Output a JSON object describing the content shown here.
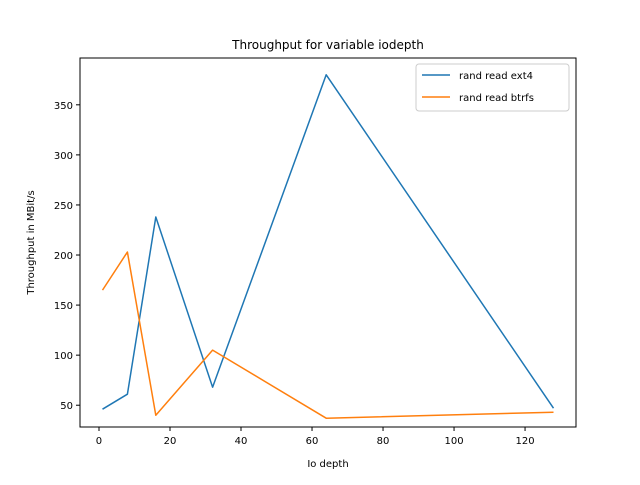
{
  "chart_data": {
    "type": "line",
    "title": "Throughput for variable iodepth",
    "xlabel": "Io depth",
    "ylabel": "Throughput in MBit/s",
    "xlim": [
      -5.35,
      134.35
    ],
    "ylim": [
      28.25,
      396.75
    ],
    "xticks": [
      0,
      20,
      40,
      60,
      80,
      100,
      120
    ],
    "yticks": [
      50,
      100,
      150,
      200,
      250,
      300,
      350
    ],
    "x": [
      1,
      8,
      16,
      32,
      64,
      128
    ],
    "series": [
      {
        "name": "rand read ext4",
        "color": "#1f77b4",
        "values": [
          46,
          61,
          238,
          68,
          380,
          47
        ]
      },
      {
        "name": "rand read btrfs",
        "color": "#ff7f0e",
        "values": [
          165,
          203,
          40,
          105,
          37,
          43
        ]
      }
    ],
    "legend": "top-right",
    "grid": false
  }
}
